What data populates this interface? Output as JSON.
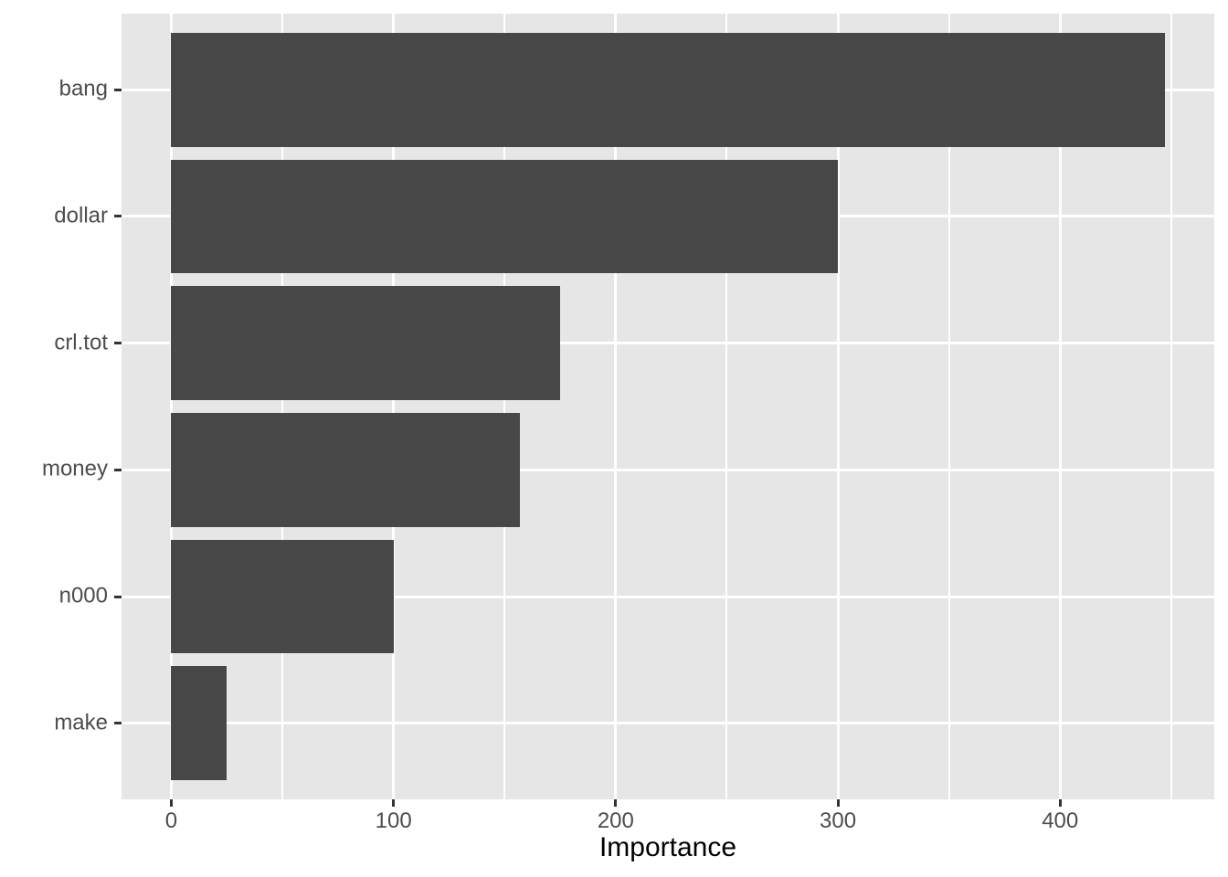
{
  "figure": {
    "background": "#FFFFFF"
  },
  "chart_data": {
    "type": "bar",
    "orientation": "horizontal",
    "title": "",
    "xlabel": "Importance",
    "ylabel": "",
    "categories": [
      "bang",
      "dollar",
      "crl.tot",
      "money",
      "n000",
      "make"
    ],
    "values": [
      447,
      300,
      175,
      157,
      100,
      25
    ],
    "xlim": [
      -22.4,
      469.4
    ],
    "x_ticks": {
      "values": [
        0,
        100,
        200,
        300,
        400
      ],
      "labels": [
        "0",
        "100",
        "200",
        "300",
        "400"
      ]
    },
    "x_minor_ticks": [
      50,
      150,
      250,
      350,
      450
    ],
    "bar_width_fraction": 0.9,
    "grid": "major and minor vertical, major horizontal, white on grey panel",
    "legend": "none",
    "colors": {
      "bar": "#474747",
      "panel": "#E6E6E6",
      "grid": "#FFFFFF",
      "tick": "#333333",
      "axis_text": "#4D4D4D",
      "axis_title": "#000000",
      "figure_bg": "#FFFFFF"
    }
  }
}
